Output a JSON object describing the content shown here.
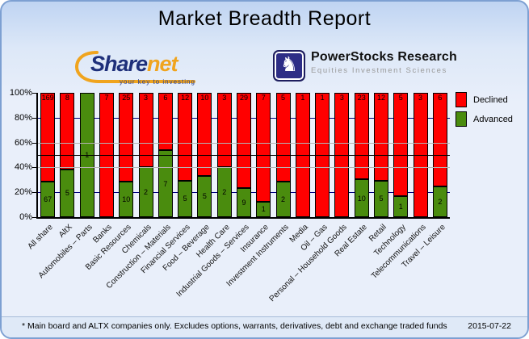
{
  "header": {
    "title": "Market Breadth Report"
  },
  "logos": {
    "sharenet": {
      "part1": "Share",
      "part2": "net",
      "tagline": "your key to investing"
    },
    "powerstocks": {
      "title": "PowerStocks  Research",
      "subtitle": "Equities Investment Sciences",
      "icon": "knight-icon",
      "knight_glyph": "♞"
    }
  },
  "chart_data": {
    "type": "bar",
    "stacked": true,
    "normalized": "percent",
    "categories": [
      "All share",
      "AltX",
      "Automobiles – Parts",
      "Banks",
      "Basic Resources",
      "Chemicals",
      "Construction – Materials",
      "Financial Services",
      "Food – Beverage",
      "Health Care",
      "Industrial Goods – Services",
      "Insurance",
      "Investment Instruments",
      "Media",
      "Oil – Gas",
      "Personal – Household Goods",
      "Real Estate",
      "Retail",
      "Technology",
      "Telecommunications",
      "Travel – Leisure"
    ],
    "series": [
      {
        "name": "Declined",
        "color": "#ff0000",
        "values": [
          169,
          8,
          0,
          7,
          25,
          3,
          6,
          12,
          10,
          3,
          29,
          7,
          5,
          1,
          1,
          3,
          23,
          12,
          5,
          3,
          6
        ]
      },
      {
        "name": "Advanced",
        "color": "#4a8c0e",
        "values": [
          67,
          5,
          1,
          0,
          10,
          2,
          7,
          5,
          5,
          2,
          9,
          1,
          2,
          0,
          0,
          0,
          10,
          5,
          1,
          0,
          2
        ]
      }
    ],
    "y_ticks": [
      "100%",
      "80%",
      "60%",
      "40%",
      "20%",
      "0%"
    ],
    "ylim": [
      0,
      100
    ],
    "reference_line_pct": 50,
    "gridlines_pct": [
      20,
      40,
      60,
      80
    ],
    "legend_position": "right",
    "legend": [
      "Declined",
      "Advanced"
    ]
  },
  "footer": {
    "note": "* Main board and ALTX companies only. Excludes options, warrants, derivatives, debt and exchange traded funds",
    "date": "2015-07-22"
  }
}
